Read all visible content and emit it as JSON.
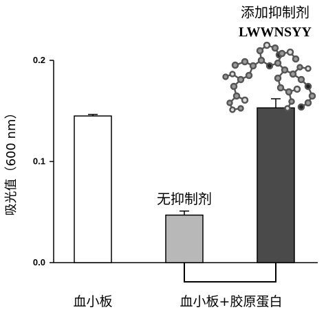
{
  "chart_data": {
    "type": "bar",
    "categories": [
      "血小板",
      "",
      ""
    ],
    "values": [
      0.145,
      0.047,
      0.153
    ],
    "errors": [
      0.0015,
      0.004,
      0.009
    ],
    "bar_colors": [
      "#ffffff",
      "#b8b8b8",
      "#4a4a4a"
    ],
    "ylabel": "吸光值（600 nm）",
    "ylim": [
      0,
      0.2
    ],
    "yticks": [
      0.0,
      0.1,
      0.2
    ],
    "ytick_labels": [
      "0.0",
      "0.1",
      "0.2"
    ],
    "grid": false,
    "group_label": "血小板+胶原蛋白",
    "annotations": {
      "no_inhibitor": "无抑制剂",
      "with_inhibitor": "添加抑制剂",
      "peptide": "LWWNSYY"
    }
  }
}
